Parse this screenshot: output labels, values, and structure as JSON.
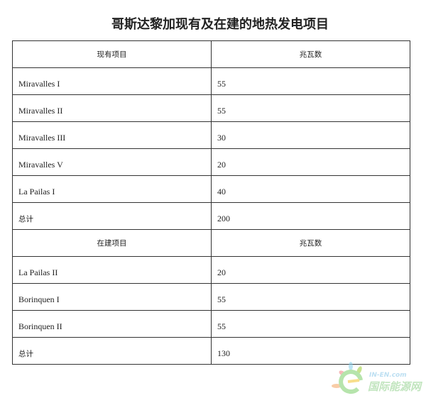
{
  "title": "哥斯达黎加现有及在建的地热发电项目",
  "existing": {
    "header": [
      "现有项目",
      "兆瓦数"
    ],
    "rows": [
      [
        "Miravalles I",
        "55"
      ],
      [
        "Miravalles II",
        "55"
      ],
      [
        "Miravalles III",
        "30"
      ],
      [
        "Miravalles V",
        "20"
      ],
      [
        "La Pailas I",
        "40"
      ],
      [
        "总计",
        "200"
      ]
    ]
  },
  "under_construction": {
    "header": [
      "在建项目",
      "兆瓦数"
    ],
    "rows": [
      [
        "La Pailas II",
        "20"
      ],
      [
        "Borinquen I",
        "55"
      ],
      [
        "Borinquen II",
        "55"
      ],
      [
        "总计",
        "130"
      ]
    ]
  },
  "watermark": {
    "domain": "IN-EN.com",
    "name": "国际能源网",
    "color": "#8fd08a"
  }
}
